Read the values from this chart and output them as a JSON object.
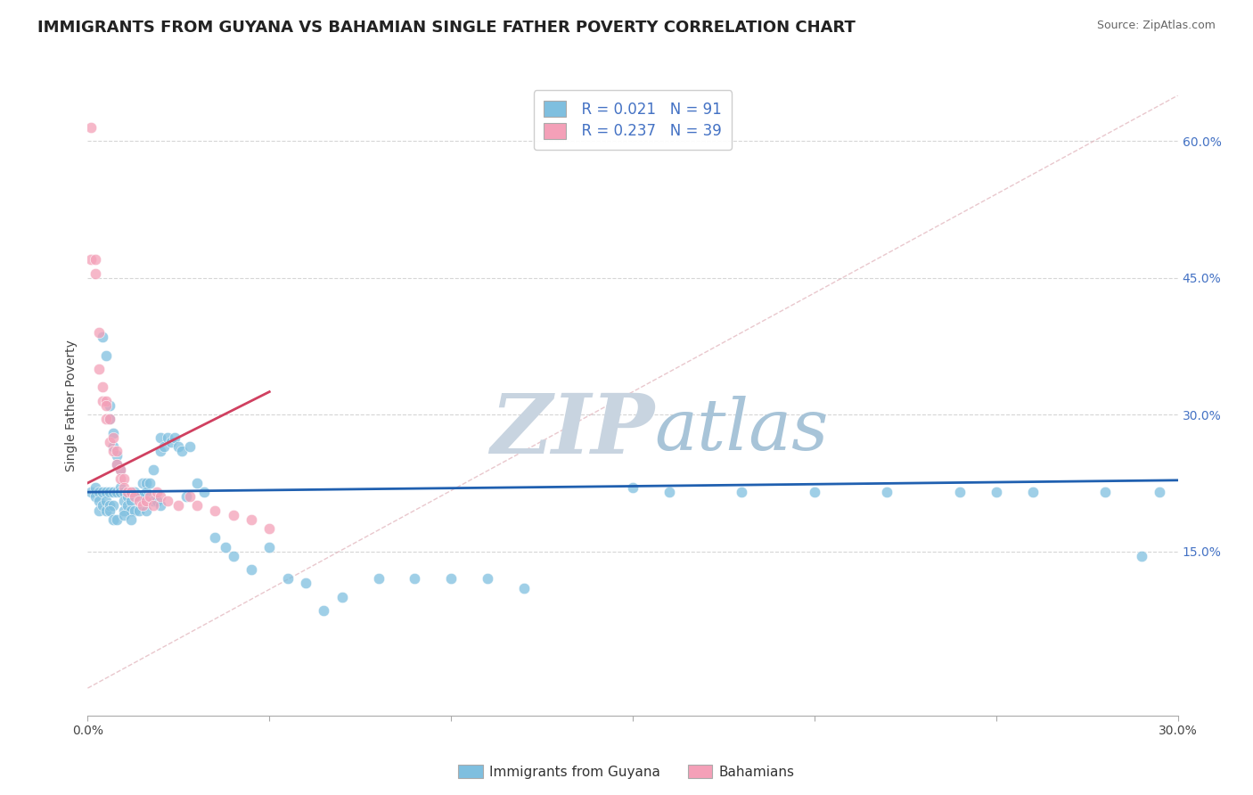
{
  "title": "IMMIGRANTS FROM GUYANA VS BAHAMIAN SINGLE FATHER POVERTY CORRELATION CHART",
  "source": "Source: ZipAtlas.com",
  "ylabel": "Single Father Poverty",
  "right_yticklabels": [
    "",
    "15.0%",
    "30.0%",
    "45.0%",
    "60.0%"
  ],
  "right_ytick_vals": [
    0.0,
    0.15,
    0.3,
    0.45,
    0.6
  ],
  "xmin": 0.0,
  "xmax": 0.3,
  "ymin": -0.03,
  "ymax": 0.65,
  "legend_blue_r": "R = 0.021",
  "legend_blue_n": "N = 91",
  "legend_pink_r": "R = 0.237",
  "legend_pink_n": "N = 39",
  "legend_label_blue": "Immigrants from Guyana",
  "legend_label_pink": "Bahamians",
  "blue_color": "#7fbfdf",
  "pink_color": "#f4a0b8",
  "blue_line_color": "#2060b0",
  "pink_line_color": "#d04060",
  "watermark_zip": "ZIP",
  "watermark_atlas": "atlas",
  "watermark_color_zip": "#c8d4e0",
  "watermark_color_atlas": "#a8c4d8",
  "grid_color": "#cccccc",
  "title_fontsize": 13,
  "axis_label_fontsize": 10,
  "tick_fontsize": 10,
  "blue_scatter_x": [
    0.001,
    0.002,
    0.002,
    0.003,
    0.003,
    0.003,
    0.004,
    0.004,
    0.004,
    0.005,
    0.005,
    0.005,
    0.005,
    0.006,
    0.006,
    0.006,
    0.006,
    0.007,
    0.007,
    0.007,
    0.007,
    0.008,
    0.008,
    0.008,
    0.009,
    0.009,
    0.009,
    0.01,
    0.01,
    0.01,
    0.011,
    0.011,
    0.012,
    0.012,
    0.013,
    0.013,
    0.014,
    0.014,
    0.015,
    0.015,
    0.016,
    0.016,
    0.017,
    0.018,
    0.018,
    0.019,
    0.02,
    0.02,
    0.021,
    0.022,
    0.023,
    0.024,
    0.025,
    0.026,
    0.027,
    0.028,
    0.03,
    0.032,
    0.035,
    0.038,
    0.04,
    0.045,
    0.05,
    0.055,
    0.06,
    0.065,
    0.07,
    0.08,
    0.09,
    0.1,
    0.11,
    0.12,
    0.15,
    0.16,
    0.18,
    0.2,
    0.22,
    0.24,
    0.25,
    0.26,
    0.28,
    0.29,
    0.295,
    0.006,
    0.007,
    0.008,
    0.01,
    0.012,
    0.014,
    0.016,
    0.02
  ],
  "blue_scatter_y": [
    0.215,
    0.22,
    0.21,
    0.215,
    0.205,
    0.195,
    0.385,
    0.215,
    0.2,
    0.365,
    0.215,
    0.205,
    0.195,
    0.31,
    0.295,
    0.215,
    0.2,
    0.28,
    0.265,
    0.215,
    0.2,
    0.255,
    0.245,
    0.215,
    0.24,
    0.22,
    0.215,
    0.215,
    0.205,
    0.195,
    0.21,
    0.2,
    0.205,
    0.195,
    0.215,
    0.195,
    0.21,
    0.195,
    0.225,
    0.21,
    0.225,
    0.215,
    0.225,
    0.24,
    0.205,
    0.205,
    0.275,
    0.26,
    0.265,
    0.275,
    0.27,
    0.275,
    0.265,
    0.26,
    0.21,
    0.265,
    0.225,
    0.215,
    0.165,
    0.155,
    0.145,
    0.13,
    0.155,
    0.12,
    0.115,
    0.085,
    0.1,
    0.12,
    0.12,
    0.12,
    0.12,
    0.11,
    0.22,
    0.215,
    0.215,
    0.215,
    0.215,
    0.215,
    0.215,
    0.215,
    0.215,
    0.145,
    0.215,
    0.195,
    0.185,
    0.185,
    0.19,
    0.185,
    0.21,
    0.195,
    0.2
  ],
  "pink_scatter_x": [
    0.001,
    0.001,
    0.002,
    0.002,
    0.003,
    0.003,
    0.004,
    0.004,
    0.005,
    0.005,
    0.005,
    0.006,
    0.006,
    0.007,
    0.007,
    0.008,
    0.008,
    0.009,
    0.009,
    0.01,
    0.01,
    0.011,
    0.012,
    0.013,
    0.014,
    0.015,
    0.016,
    0.017,
    0.018,
    0.019,
    0.02,
    0.022,
    0.025,
    0.028,
    0.03,
    0.035,
    0.04,
    0.045,
    0.05
  ],
  "pink_scatter_y": [
    0.615,
    0.47,
    0.47,
    0.455,
    0.39,
    0.35,
    0.33,
    0.315,
    0.315,
    0.31,
    0.295,
    0.295,
    0.27,
    0.275,
    0.26,
    0.26,
    0.245,
    0.24,
    0.23,
    0.23,
    0.22,
    0.215,
    0.215,
    0.21,
    0.205,
    0.2,
    0.205,
    0.21,
    0.2,
    0.215,
    0.21,
    0.205,
    0.2,
    0.21,
    0.2,
    0.195,
    0.19,
    0.185,
    0.175
  ],
  "blue_trend_x": [
    0.0,
    0.3
  ],
  "blue_trend_y": [
    0.215,
    0.228
  ],
  "pink_trend_x": [
    0.0,
    0.05
  ],
  "pink_trend_y": [
    0.225,
    0.325
  ],
  "ref_line_x": [
    0.0,
    0.3
  ],
  "ref_line_y": [
    0.0,
    0.65
  ],
  "xtick_positions": [
    0.0,
    0.05,
    0.1,
    0.15,
    0.2,
    0.25,
    0.3
  ]
}
